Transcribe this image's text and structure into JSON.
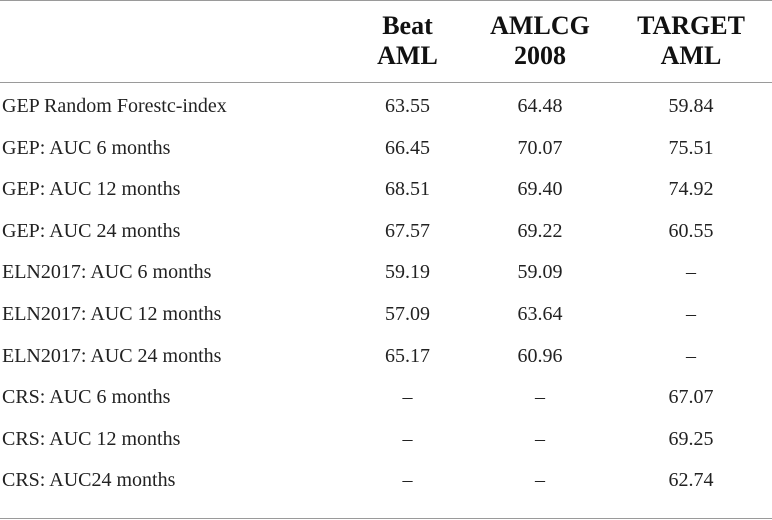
{
  "table": {
    "headers": [
      {
        "line1": "Beat",
        "line2": "AML"
      },
      {
        "line1": "AMLCG",
        "line2": "2008"
      },
      {
        "line1": "TARGET",
        "line2": "AML"
      }
    ],
    "rows": [
      {
        "label": "GEP Random Forestc-index",
        "values": [
          "63.55",
          "64.48",
          "59.84"
        ]
      },
      {
        "label": "GEP: AUC 6 months",
        "values": [
          "66.45",
          "70.07",
          "75.51"
        ]
      },
      {
        "label": "GEP: AUC 12 months",
        "values": [
          "68.51",
          "69.40",
          "74.92"
        ]
      },
      {
        "label": "GEP: AUC 24 months",
        "values": [
          "67.57",
          "69.22",
          "60.55"
        ]
      },
      {
        "label": "ELN2017: AUC 6 months",
        "values": [
          "59.19",
          "59.09",
          "–"
        ]
      },
      {
        "label": "ELN2017: AUC 12 months",
        "values": [
          "57.09",
          "63.64",
          "–"
        ]
      },
      {
        "label": "ELN2017: AUC 24 months",
        "values": [
          "65.17",
          "60.96",
          "–"
        ]
      },
      {
        "label": "CRS: AUC 6 months",
        "values": [
          "–",
          "–",
          "67.07"
        ]
      },
      {
        "label": "CRS: AUC 12 months",
        "values": [
          "–",
          "–",
          "69.25"
        ]
      },
      {
        "label": "CRS: AUC24 months",
        "values": [
          "–",
          "–",
          "62.74"
        ]
      }
    ]
  }
}
